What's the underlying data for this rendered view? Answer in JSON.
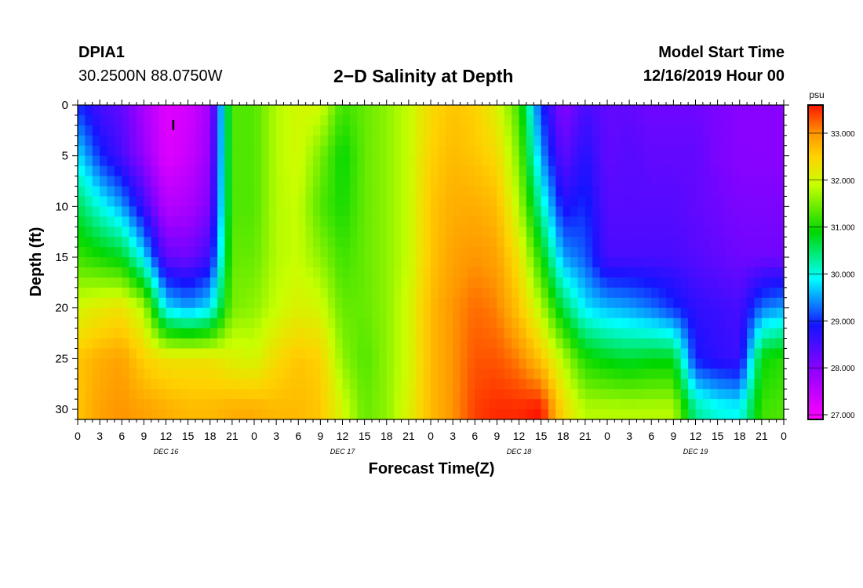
{
  "header": {
    "station": "DPIA1",
    "coordinates": "30.2500N 88.0750W",
    "title": "2−D Salinity at Depth",
    "start_label": "Model Start Time",
    "start_value": "12/16/2019 Hour 00"
  },
  "chart_data": {
    "type": "heatmap",
    "title": "2−D Salinity at Depth",
    "xlabel": "Forecast Time(Z)",
    "ylabel": "Depth (ft)",
    "x_range_hours": [
      0,
      96
    ],
    "x_tick_labels": [
      "0",
      "3",
      "6",
      "9",
      "12",
      "15",
      "18",
      "21",
      "0",
      "3",
      "6",
      "9",
      "12",
      "15",
      "18",
      "21",
      "0",
      "3",
      "6",
      "9",
      "12",
      "15",
      "18",
      "21",
      "0",
      "3",
      "6",
      "9",
      "12",
      "15",
      "18",
      "21",
      "0"
    ],
    "day_labels": [
      {
        "label": "DEC 16",
        "hour": 12
      },
      {
        "label": "DEC 17",
        "hour": 36
      },
      {
        "label": "DEC 18",
        "hour": 60
      },
      {
        "label": "DEC 19",
        "hour": 84
      }
    ],
    "ylim": [
      31,
      0
    ],
    "y_ticks": [
      0,
      5,
      10,
      15,
      20,
      25,
      30
    ],
    "colorbar": {
      "unit": "psu",
      "range": [
        26.9,
        33.6
      ],
      "ticks": [
        "27.000",
        "28.000",
        "29.000",
        "30.000",
        "31.000",
        "32.000",
        "33.000"
      ],
      "tick_values": [
        27,
        28,
        29,
        30,
        31,
        32,
        33
      ]
    },
    "marker": {
      "label": "I",
      "hour": 13,
      "depth": 2
    },
    "profile_hours": [
      0,
      3,
      6,
      9,
      12,
      15,
      18,
      21,
      24,
      27,
      30,
      33,
      36,
      39,
      42,
      45,
      48,
      51,
      54,
      57,
      60,
      63,
      66,
      69,
      72,
      75,
      78,
      81,
      84,
      87,
      90,
      93,
      96
    ],
    "profile_depths": [
      0,
      5,
      10,
      15,
      20,
      25,
      30
    ],
    "salinity": [
      [
        29.0,
        29.8,
        30.6,
        31.2,
        32.0,
        32.6,
        32.6
      ],
      [
        28.5,
        29.0,
        30.0,
        31.0,
        32.2,
        32.8,
        32.9
      ],
      [
        28.3,
        28.5,
        29.5,
        30.8,
        32.3,
        32.9,
        33.0
      ],
      [
        27.7,
        27.9,
        28.6,
        29.8,
        31.8,
        32.5,
        32.9
      ],
      [
        27.2,
        27.2,
        27.6,
        28.3,
        29.8,
        32.3,
        32.8
      ],
      [
        27.3,
        27.4,
        27.7,
        28.2,
        29.5,
        32.3,
        32.7
      ],
      [
        27.8,
        27.9,
        28.1,
        28.6,
        29.8,
        32.3,
        32.7
      ],
      [
        31.3,
        31.3,
        31.3,
        31.4,
        31.5,
        32.1,
        32.8
      ],
      [
        31.3,
        31.3,
        31.3,
        31.4,
        31.6,
        32.0,
        32.8
      ],
      [
        31.8,
        31.8,
        31.8,
        31.8,
        31.9,
        32.4,
        32.7
      ],
      [
        32.0,
        32.0,
        31.9,
        31.9,
        32.1,
        32.6,
        32.7
      ],
      [
        32.0,
        31.5,
        31.3,
        31.6,
        32.0,
        32.5,
        32.6
      ],
      [
        31.2,
        30.9,
        31.0,
        31.2,
        31.4,
        31.6,
        32.0
      ],
      [
        31.4,
        31.4,
        31.4,
        31.4,
        31.4,
        31.3,
        31.4
      ],
      [
        31.6,
        31.6,
        31.6,
        31.6,
        31.6,
        31.6,
        31.6
      ],
      [
        31.9,
        31.9,
        31.9,
        31.9,
        32.0,
        32.0,
        32.1
      ],
      [
        32.4,
        32.5,
        32.6,
        32.6,
        32.7,
        32.7,
        32.7
      ],
      [
        32.6,
        32.7,
        32.8,
        32.9,
        33.0,
        33.0,
        33.0
      ],
      [
        32.5,
        32.6,
        32.8,
        33.0,
        33.2,
        33.3,
        33.4
      ],
      [
        32.1,
        32.4,
        32.7,
        32.9,
        33.1,
        33.3,
        33.5
      ],
      [
        31.2,
        31.5,
        31.8,
        32.3,
        32.6,
        33.1,
        33.5
      ],
      [
        29.0,
        29.5,
        30.2,
        31.0,
        31.8,
        32.6,
        33.6
      ],
      [
        28.0,
        28.3,
        28.8,
        29.5,
        30.6,
        31.8,
        32.4
      ],
      [
        28.5,
        28.8,
        29.0,
        29.2,
        29.8,
        31.0,
        31.8
      ],
      [
        28.3,
        28.3,
        28.4,
        28.5,
        29.6,
        30.8,
        31.8
      ],
      [
        28.3,
        28.4,
        28.4,
        28.5,
        29.5,
        30.7,
        31.8
      ],
      [
        28.2,
        28.3,
        28.4,
        28.5,
        29.3,
        30.8,
        31.8
      ],
      [
        28.2,
        28.3,
        28.4,
        28.5,
        29.0,
        30.8,
        31.8
      ],
      [
        28.2,
        28.3,
        28.3,
        28.4,
        28.7,
        28.9,
        30.3
      ],
      [
        28.1,
        28.1,
        28.2,
        28.3,
        28.6,
        28.7,
        30.0
      ],
      [
        28.0,
        28.0,
        28.1,
        28.2,
        28.5,
        28.6,
        29.9
      ],
      [
        28.0,
        28.0,
        28.1,
        28.2,
        29.3,
        30.9,
        31.2
      ],
      [
        28.0,
        28.0,
        28.1,
        28.2,
        29.5,
        31.1,
        31.3
      ]
    ]
  }
}
